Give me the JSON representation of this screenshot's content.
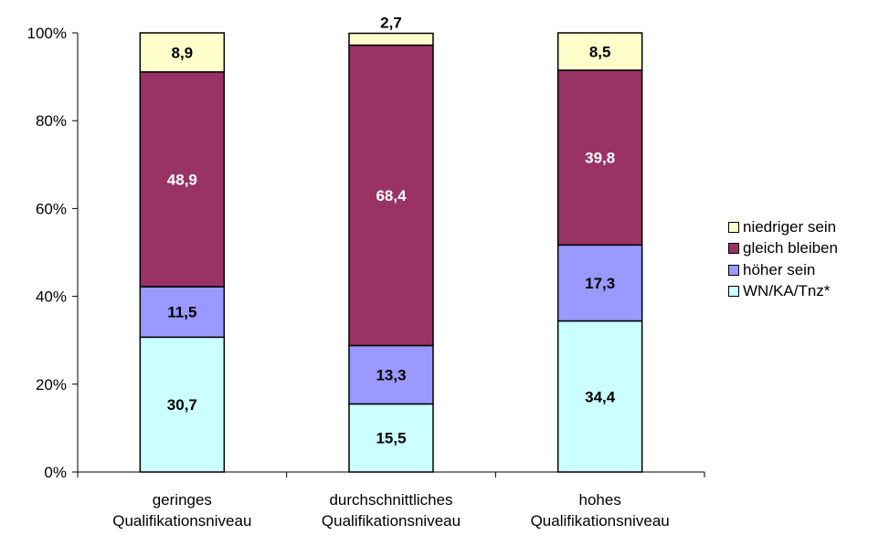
{
  "chart_data": {
    "type": "bar",
    "stacked": true,
    "percent": true,
    "categories": [
      [
        "geringes",
        "Qualifikationsniveau"
      ],
      [
        "durchschnittliches",
        "Qualifikationsniveau"
      ],
      [
        "hohes",
        "Qualifikationsniveau"
      ]
    ],
    "series": [
      {
        "name": "WN/KA/Tnz*",
        "color": "#ccffff",
        "label_color": "#000000",
        "values": [
          30.7,
          15.5,
          34.4
        ],
        "labels": [
          "30,7",
          "15,5",
          "34,4"
        ]
      },
      {
        "name": "höher sein",
        "color": "#9999ff",
        "label_color": "#000000",
        "values": [
          11.5,
          13.3,
          17.3
        ],
        "labels": [
          "11,5",
          "13,3",
          "17,3"
        ]
      },
      {
        "name": "gleich bleiben",
        "color": "#993366",
        "label_color": "#ffffff",
        "values": [
          48.9,
          68.4,
          39.8
        ],
        "labels": [
          "48,9",
          "68,4",
          "39,8"
        ]
      },
      {
        "name": "niedriger sein",
        "color": "#ffffcc",
        "label_color": "#000000",
        "values": [
          8.9,
          2.7,
          8.5
        ],
        "labels": [
          "8,9",
          "2,7",
          "8,5"
        ]
      }
    ],
    "y_ticks": [
      "0%",
      "20%",
      "40%",
      "60%",
      "80%",
      "100%"
    ],
    "ylim": [
      0,
      100
    ],
    "legend_position": "right",
    "legend_order": [
      "niedriger sein",
      "gleich bleiben",
      "höher sein",
      "WN/KA/Tnz*"
    ],
    "title": "",
    "xlabel": "",
    "ylabel": ""
  }
}
